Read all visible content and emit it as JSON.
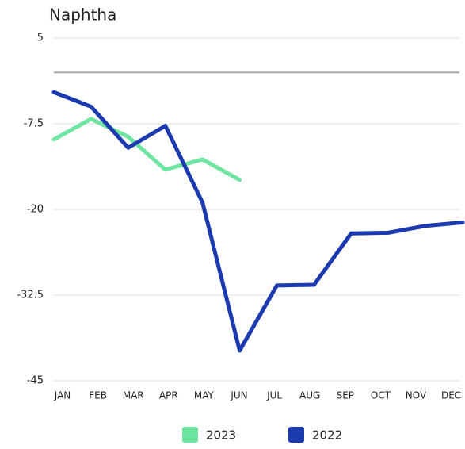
{
  "chart_data": {
    "type": "line",
    "title": "Naphtha",
    "categories": [
      "JAN",
      "FEB",
      "MAR",
      "APR",
      "MAY",
      "JUN",
      "JUL",
      "AUG",
      "SEP",
      "OCT",
      "NOV",
      "DEC"
    ],
    "series": [
      {
        "name": "2023",
        "color": "#6ee6a1",
        "values": [
          -9.8,
          -6.8,
          -9.4,
          -14.2,
          -12.7,
          -15.7,
          null,
          null,
          null,
          null,
          null,
          null
        ]
      },
      {
        "name": "2022",
        "color": "#1c3aaf",
        "values": [
          -2.9,
          -5.0,
          -11.0,
          -7.8,
          -19.0,
          -40.6,
          -31.1,
          -31.0,
          -23.5,
          -23.4,
          -22.4,
          -21.9
        ]
      }
    ],
    "ylim": [
      -45,
      5
    ],
    "yticks": [
      5,
      -7.5,
      -20,
      -32.5,
      -45
    ],
    "grid": true
  }
}
